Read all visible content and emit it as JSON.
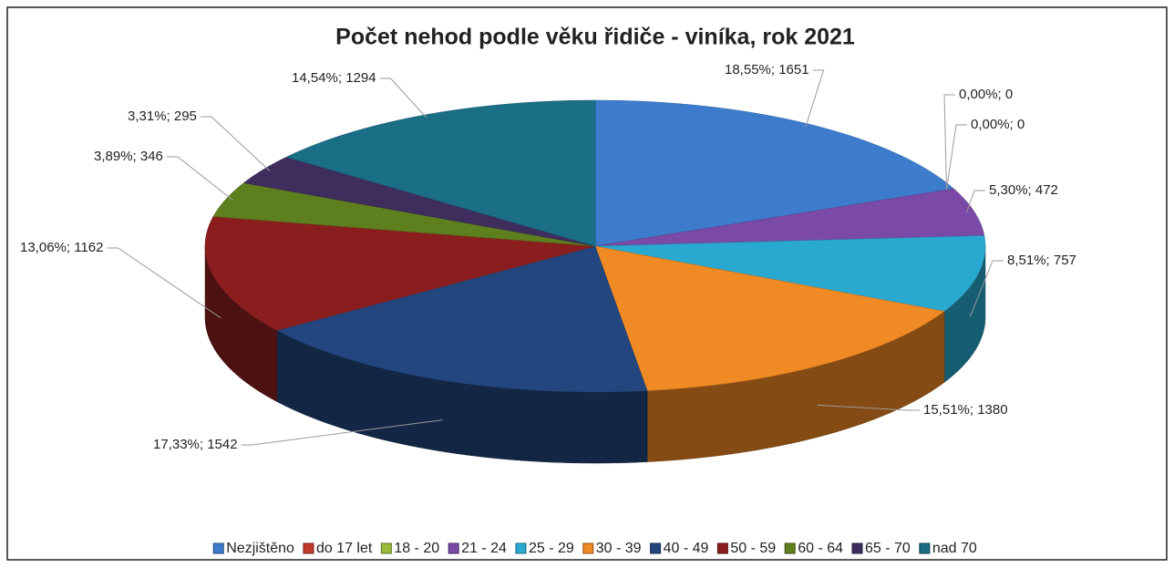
{
  "chart_data": {
    "type": "pie3d",
    "title": "Počet nehod podle věku řidiče - viníka,  rok 2021",
    "categories": [
      "Nezjištěno",
      "do 17 let",
      "18 - 20",
      "21 - 24",
      "25 - 29",
      "30 - 39",
      "40 - 49",
      "50 - 59",
      "60 - 64",
      "65 - 70",
      "nad 70"
    ],
    "values": [
      1651,
      0,
      0,
      472,
      757,
      1380,
      1542,
      1162,
      346,
      295,
      1294
    ],
    "value_labels": [
      "18,55%; 1651",
      "0,00%; 0",
      "0,00%; 0",
      "5,30%; 472",
      "8,51%; 757",
      "15,51%; 1380",
      "17,33%; 1542",
      "13,06%; 1162",
      "3,89%; 346",
      "3,31%; 295",
      "14,54%; 1294"
    ],
    "colors": [
      "#3d7ccc",
      "#c0392b",
      "#9bbb3b",
      "#7a4aa6",
      "#2aa9d0",
      "#f08a24",
      "#23467e",
      "#8a1e1e",
      "#5e7f1e",
      "#3f2d5e",
      "#1a6e86"
    ],
    "legend": "bottom"
  }
}
